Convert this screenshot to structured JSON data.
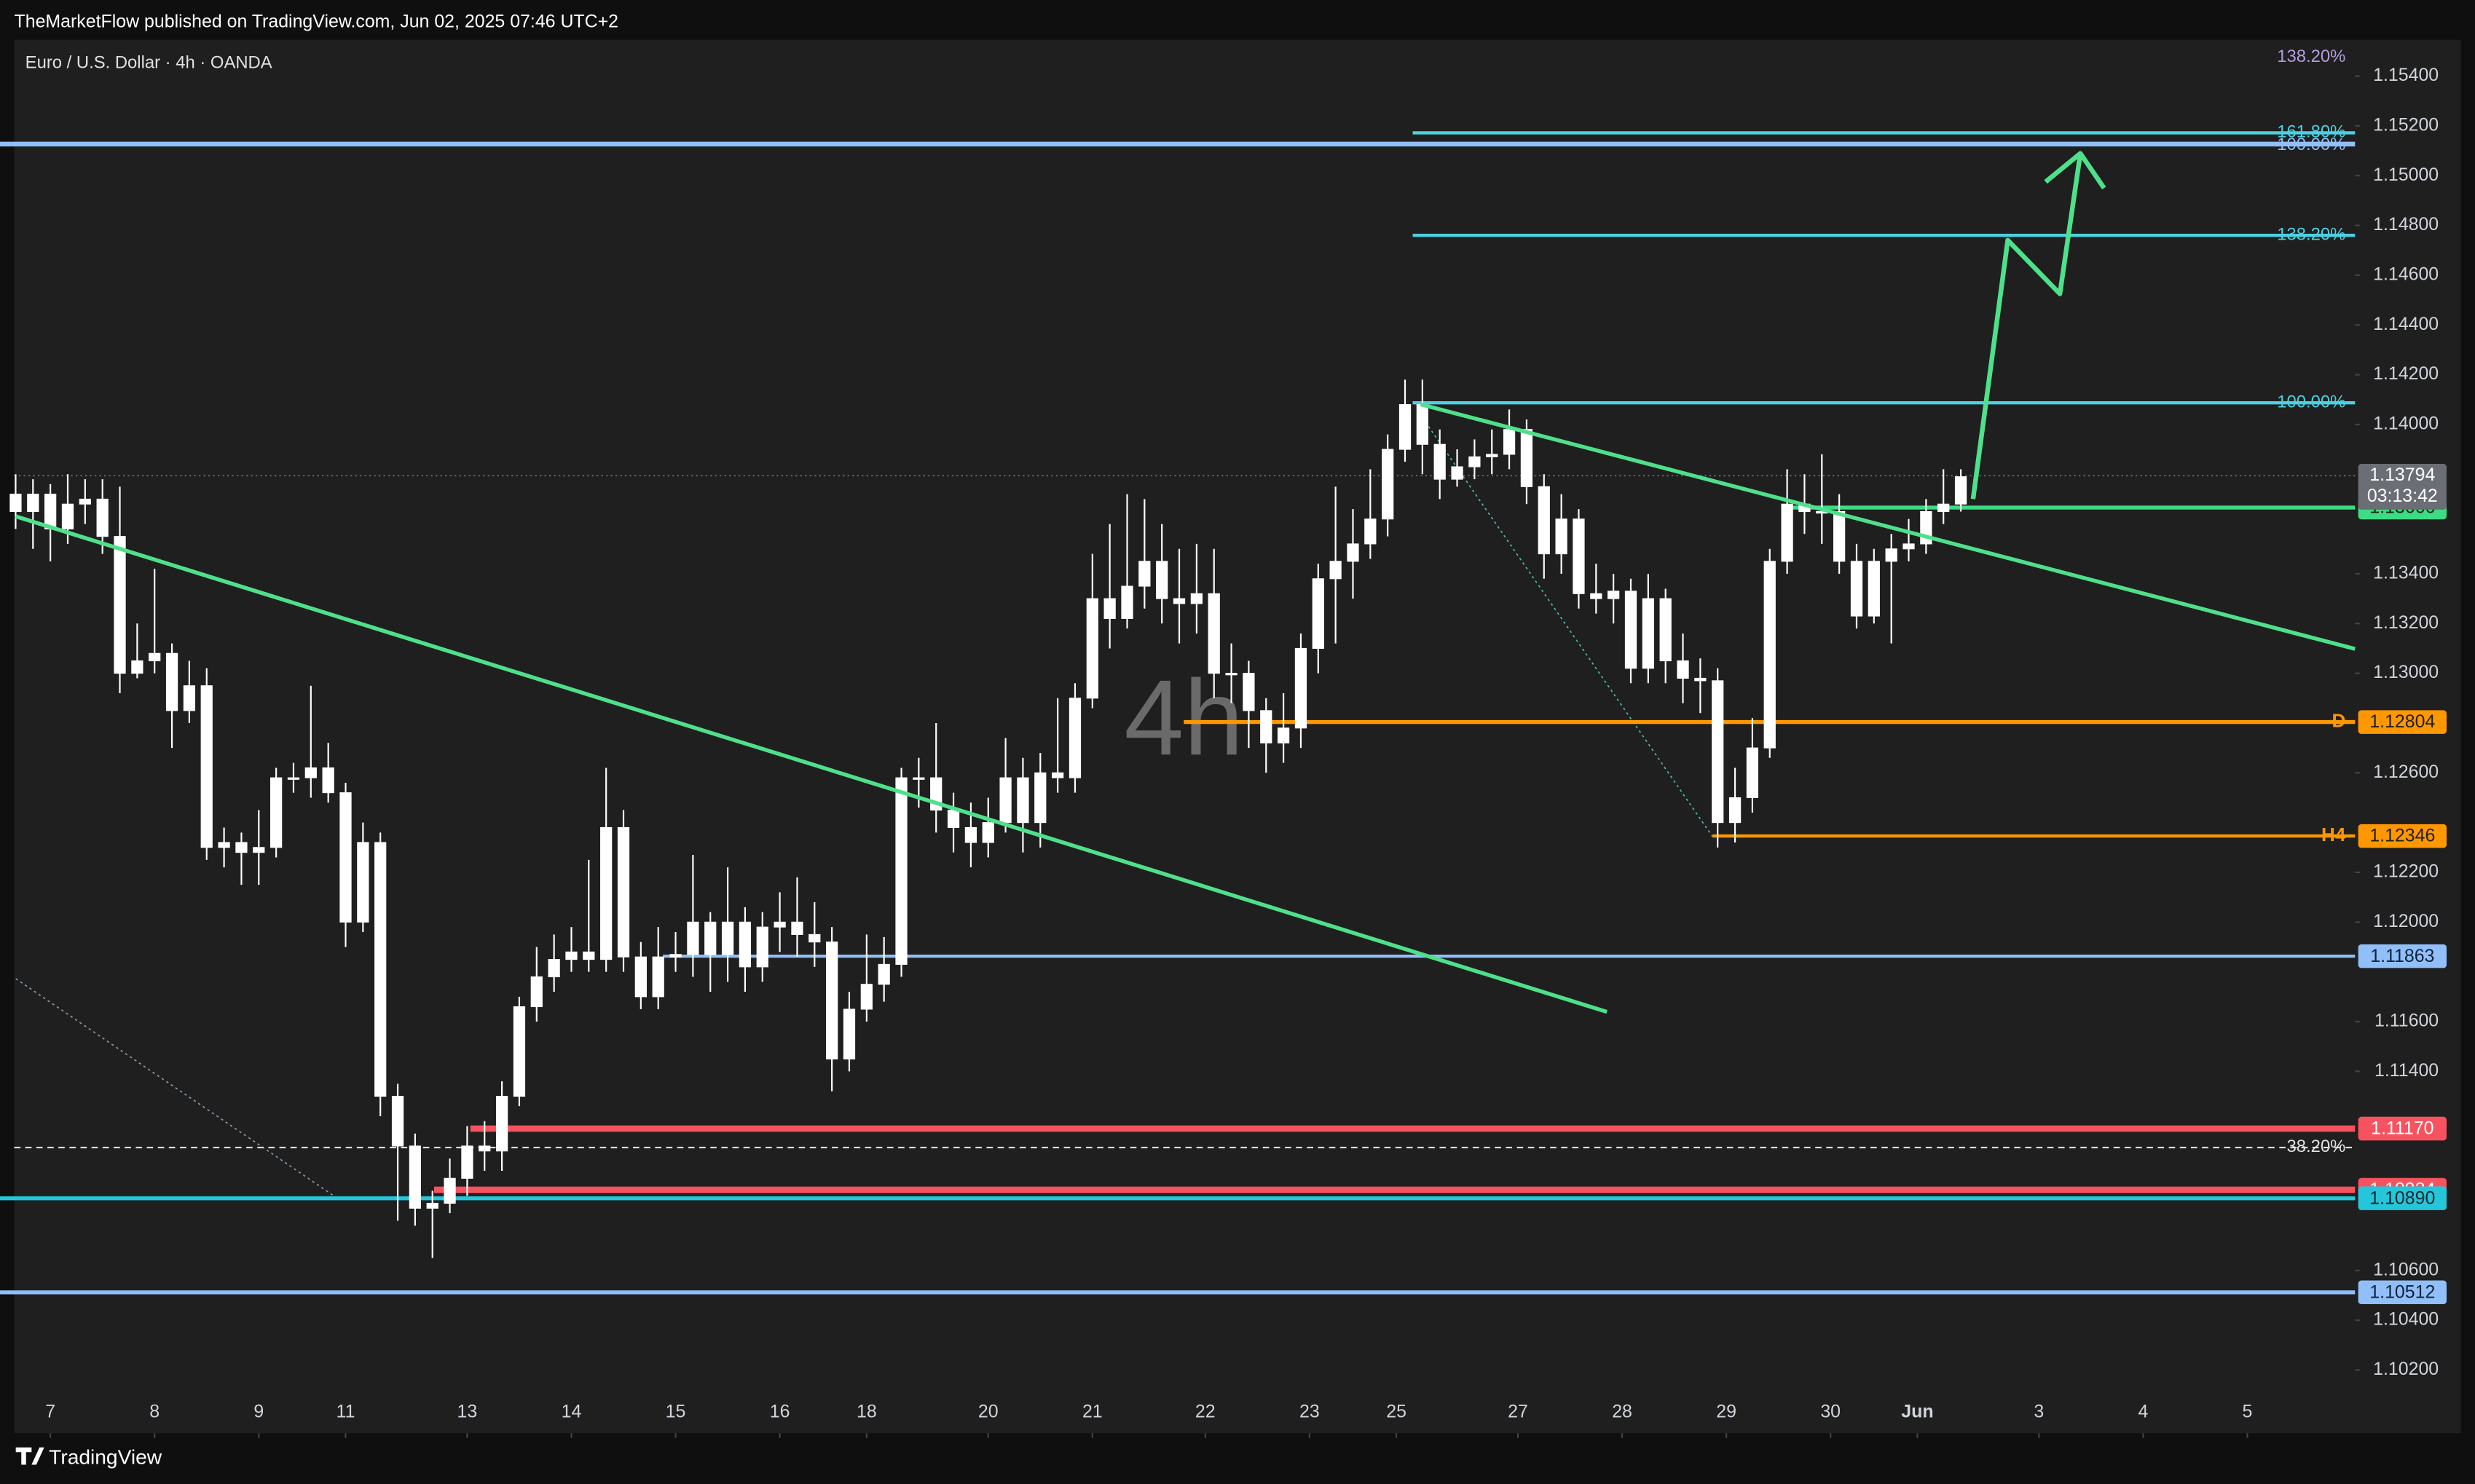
{
  "header": {
    "publisher": "TheMarketFlow published on TradingView.com, Jun 02, 2025 07:46 UTC+2",
    "brand": "TradingView"
  },
  "chart_data": {
    "type": "candlestick",
    "title": "Euro / U.S. Dollar · 4h · OANDA",
    "watermark": "4h",
    "xlim": [
      -0.9,
      134.7
    ],
    "ylim": [
      1.09946,
      1.15546
    ],
    "xticks": [
      {
        "value": 2,
        "label": "7"
      },
      {
        "value": 8,
        "label": "8"
      },
      {
        "value": 14,
        "label": "9"
      },
      {
        "value": 19,
        "label": "11"
      },
      {
        "value": 26,
        "label": "13"
      },
      {
        "value": 32,
        "label": "14"
      },
      {
        "value": 38,
        "label": "15"
      },
      {
        "value": 44,
        "label": "16"
      },
      {
        "value": 49,
        "label": "18"
      },
      {
        "value": 56,
        "label": "20"
      },
      {
        "value": 62,
        "label": "21"
      },
      {
        "value": 68.5,
        "label": "22"
      },
      {
        "value": 74.5,
        "label": "23"
      },
      {
        "value": 79.5,
        "label": "25"
      },
      {
        "value": 86.5,
        "label": "27"
      },
      {
        "value": 92.5,
        "label": "28"
      },
      {
        "value": 98.5,
        "label": "29"
      },
      {
        "value": 104.5,
        "label": "30"
      },
      {
        "value": 109.5,
        "label": "Jun"
      },
      {
        "value": 116.5,
        "label": "3"
      },
      {
        "value": 122.5,
        "label": "4"
      },
      {
        "value": 128.5,
        "label": "5"
      }
    ],
    "yticks": [
      {
        "value": 1.154,
        "label": "1.15400"
      },
      {
        "value": 1.152,
        "label": "1.15200"
      },
      {
        "value": 1.15,
        "label": "1.15000"
      },
      {
        "value": 1.148,
        "label": "1.14800"
      },
      {
        "value": 1.146,
        "label": "1.14600"
      },
      {
        "value": 1.144,
        "label": "1.14400"
      },
      {
        "value": 1.142,
        "label": "1.14200"
      },
      {
        "value": 1.14,
        "label": "1.14000"
      },
      {
        "value": 1.134,
        "label": "1.13400"
      },
      {
        "value": 1.132,
        "label": "1.13200"
      },
      {
        "value": 1.13,
        "label": "1.13000"
      },
      {
        "value": 1.126,
        "label": "1.12600"
      },
      {
        "value": 1.122,
        "label": "1.12200"
      },
      {
        "value": 1.12,
        "label": "1.12000"
      },
      {
        "value": 1.116,
        "label": "1.11600"
      },
      {
        "value": 1.114,
        "label": "1.11400"
      },
      {
        "value": 1.106,
        "label": "1.10600"
      },
      {
        "value": 1.104,
        "label": "1.10400"
      },
      {
        "value": 1.102,
        "label": "1.10200"
      }
    ],
    "candle_color": "#ffffff",
    "open": [
      1.1372,
      1.1365,
      1.1372,
      1.1358,
      1.1368,
      1.137,
      1.1355,
      1.13,
      1.1305,
      1.1308,
      1.1285,
      1.1295,
      1.123,
      1.1232,
      1.1228,
      1.123,
      1.1258,
      1.1258,
      1.1262,
      1.1252,
      1.12,
      1.1232,
      1.113,
      1.111,
      1.1085,
      1.1087,
      1.1097,
      1.111,
      1.1108,
      1.113,
      1.1166,
      1.1178,
      1.1185,
      1.1188,
      1.1185,
      1.1238,
      1.1186,
      1.117,
      1.1186,
      1.1187,
      1.12,
      1.1187,
      1.12,
      1.1182,
      1.1198,
      1.12,
      1.1195,
      1.1192,
      1.1145,
      1.1165,
      1.1175,
      1.1183,
      1.1258,
      1.1258,
      1.1245,
      1.1238,
      1.1232,
      1.124,
      1.1258,
      1.124,
      1.126,
      1.1258,
      1.129,
      1.133,
      1.1322,
      1.1335,
      1.1345,
      1.133,
      1.1328,
      1.1332,
      1.13,
      1.13,
      1.1285,
      1.1272,
      1.1278,
      1.131,
      1.1338,
      1.1345,
      1.1352,
      1.1362,
      1.139,
      1.1408,
      1.1392,
      1.1378,
      1.1383,
      1.1387,
      1.1388,
      1.1398,
      1.1375,
      1.1348,
      1.1362,
      1.1332,
      1.133,
      1.1333,
      1.1302,
      1.133,
      1.1305,
      1.1298,
      1.1297,
      1.124,
      1.125,
      1.127,
      1.1345,
      1.1368,
      1.1365,
      1.1365,
      1.1345,
      1.1323,
      1.1345,
      1.135,
      1.1352,
      1.1365,
      1.1368
    ],
    "high": [
      1.138,
      1.1378,
      1.1376,
      1.138,
      1.1378,
      1.1378,
      1.1375,
      1.132,
      1.1342,
      1.1312,
      1.1305,
      1.1302,
      1.1238,
      1.1236,
      1.1245,
      1.1262,
      1.1264,
      1.1295,
      1.1272,
      1.1256,
      1.124,
      1.1236,
      1.1135,
      1.1115,
      1.1092,
      1.1105,
      1.1118,
      1.112,
      1.1136,
      1.117,
      1.119,
      1.1195,
      1.1198,
      1.1225,
      1.1262,
      1.1245,
      1.1192,
      1.1198,
      1.1196,
      1.1227,
      1.1204,
      1.1222,
      1.1206,
      1.1204,
      1.1212,
      1.1218,
      1.1208,
      1.1198,
      1.1172,
      1.1195,
      1.1194,
      1.1262,
      1.1266,
      1.128,
      1.1252,
      1.1248,
      1.125,
      1.1274,
      1.1266,
      1.1268,
      1.129,
      1.1296,
      1.1348,
      1.136,
      1.1372,
      1.137,
      1.136,
      1.135,
      1.1352,
      1.135,
      1.1312,
      1.1305,
      1.129,
      1.1292,
      1.1316,
      1.1344,
      1.1375,
      1.1366,
      1.1382,
      1.1396,
      1.1418,
      1.1418,
      1.1398,
      1.139,
      1.1394,
      1.1398,
      1.1406,
      1.1402,
      1.138,
      1.1372,
      1.1366,
      1.1344,
      1.134,
      1.1338,
      1.134,
      1.1334,
      1.1316,
      1.1306,
      1.1302,
      1.1262,
      1.1282,
      1.135,
      1.1382,
      1.138,
      1.1388,
      1.1372,
      1.1352,
      1.135,
      1.1356,
      1.1362,
      1.137,
      1.1382,
      1.1382
    ],
    "low": [
      1.1358,
      1.135,
      1.1345,
      1.1352,
      1.136,
      1.1348,
      1.1292,
      1.1298,
      1.13,
      1.127,
      1.128,
      1.1225,
      1.1222,
      1.1215,
      1.1215,
      1.1226,
      1.1252,
      1.125,
      1.1248,
      1.119,
      1.1196,
      1.1122,
      1.108,
      1.1078,
      1.1065,
      1.1083,
      1.109,
      1.11,
      1.11,
      1.1126,
      1.116,
      1.1172,
      1.118,
      1.118,
      1.118,
      1.118,
      1.1165,
      1.1165,
      1.118,
      1.1178,
      1.1172,
      1.1176,
      1.1172,
      1.1176,
      1.1188,
      1.1186,
      1.1182,
      1.1132,
      1.114,
      1.116,
      1.1168,
      1.1178,
      1.1246,
      1.1236,
      1.1228,
      1.1222,
      1.1226,
      1.1236,
      1.1228,
      1.123,
      1.1252,
      1.1252,
      1.1286,
      1.131,
      1.1318,
      1.1326,
      1.132,
      1.1312,
      1.1316,
      1.129,
      1.1288,
      1.127,
      1.126,
      1.1264,
      1.127,
      1.13,
      1.1312,
      1.133,
      1.1346,
      1.1355,
      1.1385,
      1.138,
      1.137,
      1.1375,
      1.1378,
      1.138,
      1.1382,
      1.1368,
      1.1338,
      1.134,
      1.1326,
      1.1324,
      1.132,
      1.1296,
      1.1296,
      1.1296,
      1.1288,
      1.1284,
      1.123,
      1.1232,
      1.1244,
      1.1266,
      1.134,
      1.1356,
      1.1352,
      1.134,
      1.1318,
      1.132,
      1.1312,
      1.1345,
      1.1348,
      1.136,
      1.1365
    ],
    "close": [
      1.1365,
      1.1372,
      1.1358,
      1.1368,
      1.137,
      1.1355,
      1.13,
      1.1305,
      1.1308,
      1.1285,
      1.1295,
      1.123,
      1.1232,
      1.1228,
      1.123,
      1.1258,
      1.1258,
      1.1262,
      1.1252,
      1.12,
      1.1232,
      1.113,
      1.111,
      1.1085,
      1.1087,
      1.1097,
      1.111,
      1.1108,
      1.113,
      1.1166,
      1.1178,
      1.1185,
      1.1188,
      1.1185,
      1.1238,
      1.1186,
      1.117,
      1.1186,
      1.1187,
      1.12,
      1.1187,
      1.12,
      1.1182,
      1.1198,
      1.12,
      1.1195,
      1.1192,
      1.1145,
      1.1165,
      1.1175,
      1.1183,
      1.1258,
      1.1258,
      1.1245,
      1.1238,
      1.1232,
      1.124,
      1.1258,
      1.124,
      1.126,
      1.1258,
      1.129,
      1.133,
      1.1322,
      1.1335,
      1.1345,
      1.133,
      1.1328,
      1.1332,
      1.13,
      1.13,
      1.1285,
      1.1272,
      1.1278,
      1.131,
      1.1338,
      1.1345,
      1.1352,
      1.1362,
      1.139,
      1.1408,
      1.1392,
      1.1378,
      1.1383,
      1.1387,
      1.1388,
      1.1398,
      1.1375,
      1.1348,
      1.1362,
      1.1332,
      1.133,
      1.1333,
      1.1302,
      1.133,
      1.1305,
      1.1298,
      1.1297,
      1.124,
      1.125,
      1.127,
      1.1345,
      1.1368,
      1.1365,
      1.1365,
      1.1345,
      1.1323,
      1.1345,
      1.135,
      1.1352,
      1.1365,
      1.1368,
      1.1379
    ],
    "last_price": {
      "value": 1.13794,
      "countdown": "03:13:42"
    },
    "levels": [
      {
        "value": 1.15127,
        "color": "#90bff9"
      },
      {
        "value": 1.13666,
        "color": "#3ddc84"
      },
      {
        "value": 1.12804,
        "name": "D",
        "color": "#ff9800"
      },
      {
        "value": 1.12346,
        "name": "H4",
        "color": "#ff9800"
      },
      {
        "value": 1.11863,
        "color": "#90bff9"
      },
      {
        "value": 1.1117,
        "label": "1.11170",
        "color": "#f7525f"
      },
      {
        "value": 1.10924,
        "color": "#f7525f"
      },
      {
        "value": 1.1089,
        "label": "1.10890",
        "color": "#26c6da"
      },
      {
        "value": 1.10512,
        "color": "#90bff9"
      }
    ],
    "fib_levels": [
      {
        "value": 1.15172,
        "label": "161.80%"
      },
      {
        "value": 1.1476,
        "label": "138.20%"
      },
      {
        "value": 1.14087,
        "label": "100.00%"
      }
    ],
    "fib_color": "#4dd0e1",
    "ref_line": {
      "value": 1.11094,
      "label": "38.20%"
    },
    "annotations": [
      "138.20%",
      "100.00%"
    ]
  }
}
